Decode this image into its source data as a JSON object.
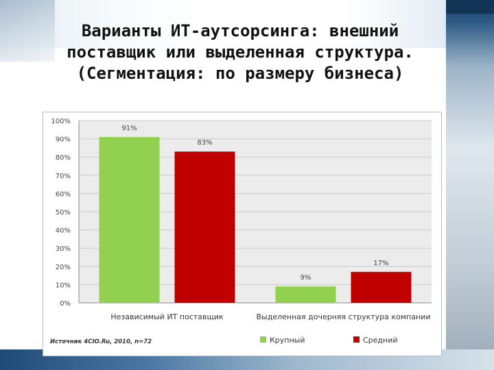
{
  "slide": {
    "title": "Варианты ИТ-аутсорсинга: внешний поставщик или выделенная структура. (Сегментация: по размеру бизнеса)"
  },
  "colors": {
    "series_large": "#92d050",
    "series_medium": "#c00000",
    "plot_background": "#ececec",
    "gridline": "#c8c8c8"
  },
  "chart_data": {
    "type": "bar",
    "title": "",
    "xlabel": "",
    "ylabel": "",
    "ylim": [
      0,
      100
    ],
    "y_ticks": [
      0,
      10,
      20,
      30,
      40,
      50,
      60,
      70,
      80,
      90,
      100
    ],
    "y_tick_suffix": "%",
    "grid": true,
    "legend_position": "bottom",
    "categories": [
      "Независимый ИТ поставщик",
      "Выделенная дочерняя структура компании"
    ],
    "series": [
      {
        "name": "Крупный",
        "values": [
          91,
          9
        ],
        "color": "#92d050"
      },
      {
        "name": "Средний",
        "values": [
          83,
          17
        ],
        "color": "#c00000"
      }
    ],
    "data_labels": [
      [
        "91%",
        "9%"
      ],
      [
        "83%",
        "17%"
      ]
    ],
    "source": "Источник 4CIO.Ru, 2010, n=72"
  }
}
